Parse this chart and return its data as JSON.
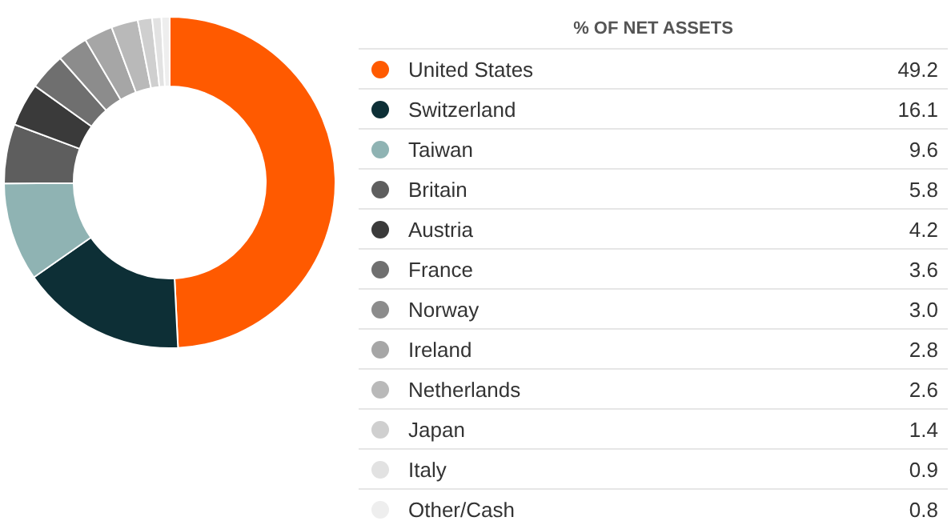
{
  "chart_data": {
    "type": "donut",
    "legend_title": "% OF NET ASSETS",
    "legend": "right",
    "categories": [
      "United States",
      "Switzerland",
      "Taiwan",
      "Britain",
      "Austria",
      "France",
      "Norway",
      "Ireland",
      "Netherlands",
      "Japan",
      "Italy",
      "Other/Cash"
    ],
    "values": [
      49.2,
      16.1,
      9.6,
      5.8,
      4.2,
      3.6,
      3.0,
      2.8,
      2.6,
      1.4,
      0.9,
      0.8
    ],
    "value_labels": [
      "49.2",
      "16.1",
      "9.6",
      "5.8",
      "4.2",
      "3.6",
      "3.0",
      "2.8",
      "2.6",
      "1.4",
      "0.9",
      "0.8"
    ],
    "colors": [
      "#ff5a00",
      "#0d2f36",
      "#8fb3b3",
      "#5e5e5e",
      "#3a3a3a",
      "#6f6f6f",
      "#8c8c8c",
      "#a6a6a6",
      "#b9b9b9",
      "#cfcfcf",
      "#e2e2e2",
      "#eeeeee"
    ]
  }
}
